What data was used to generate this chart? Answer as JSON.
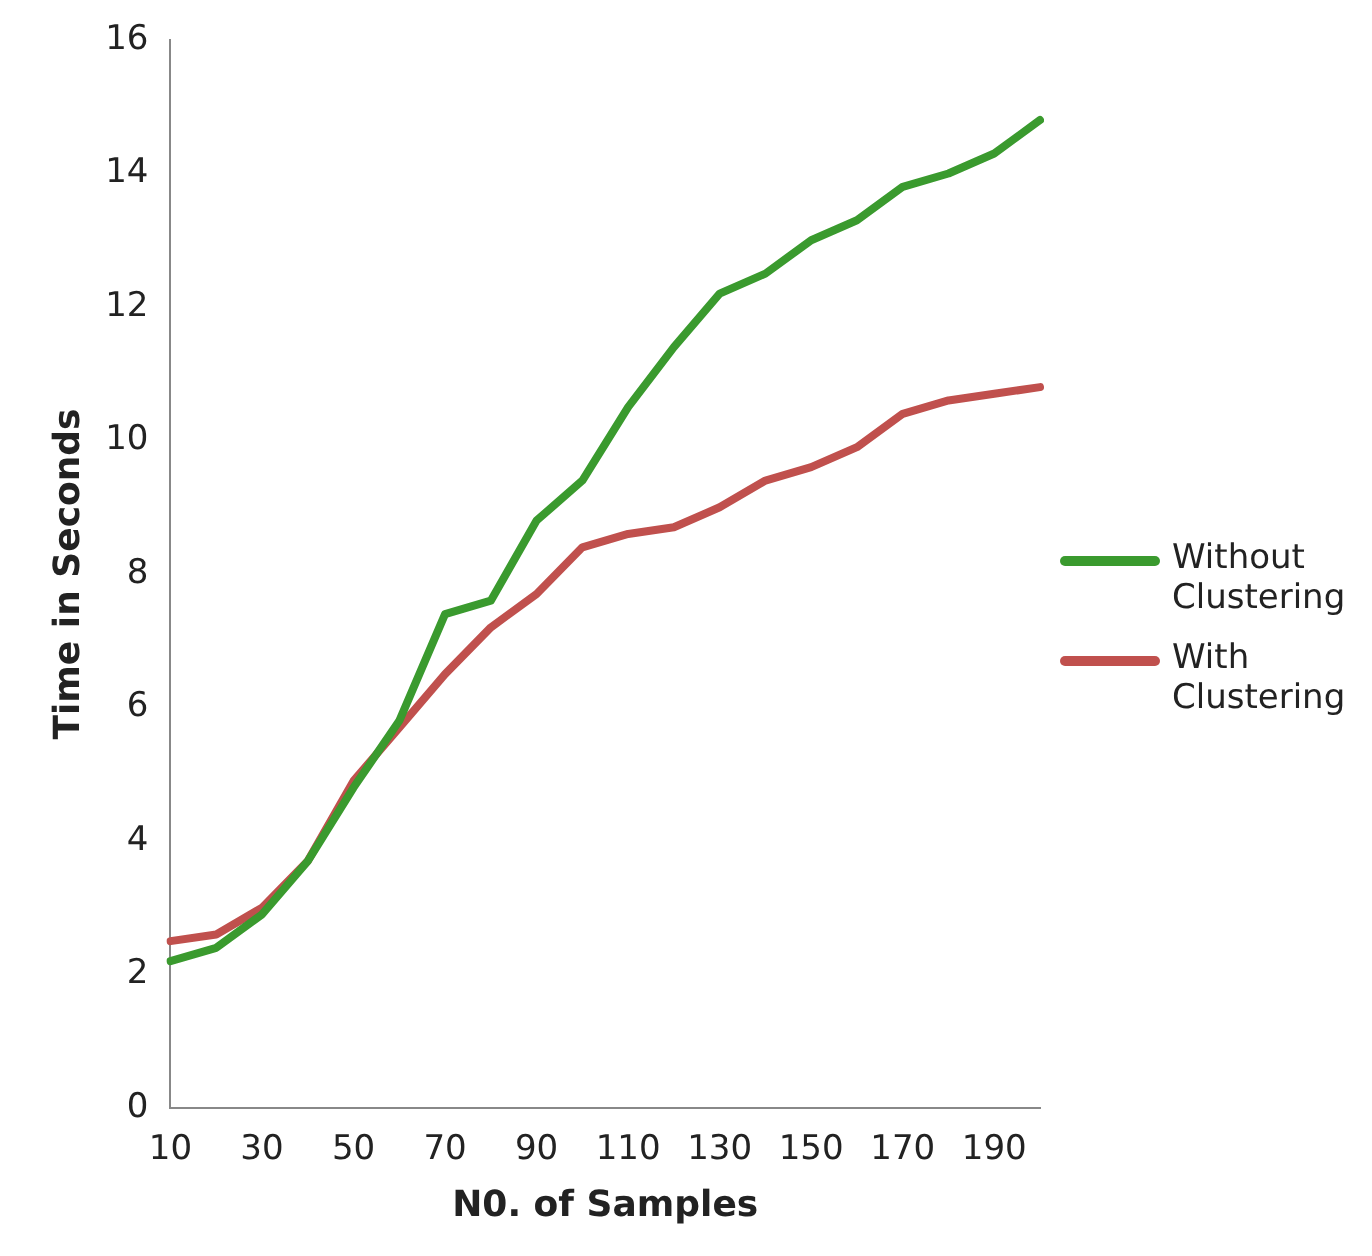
{
  "chart_data": {
    "type": "line",
    "xlabel": "N0. of Samples",
    "ylabel": "Time in Seconds",
    "categories": [
      "10",
      null,
      "30",
      null,
      "50",
      null,
      "70",
      null,
      "90",
      null,
      "110",
      null,
      "130",
      null,
      "150",
      null,
      "170",
      null,
      "190",
      null
    ],
    "series": [
      {
        "name": "Without Clustering",
        "color": "#3a9a2e",
        "values": [
          2.2,
          2.4,
          2.9,
          3.7,
          4.8,
          5.8,
          7.4,
          7.6,
          8.8,
          9.4,
          10.5,
          11.4,
          12.2,
          12.5,
          13.0,
          13.3,
          13.8,
          14.0,
          14.3,
          14.8
        ]
      },
      {
        "name": "With Clustering",
        "color": "#c0504d",
        "values": [
          2.5,
          2.6,
          3.0,
          3.7,
          4.9,
          5.7,
          6.5,
          7.2,
          7.7,
          8.4,
          8.6,
          8.7,
          9.0,
          9.4,
          9.6,
          9.9,
          10.4,
          10.6,
          10.7,
          10.8
        ]
      }
    ],
    "ylim": [
      0,
      16
    ],
    "yticks": [
      0,
      2,
      4,
      6,
      8,
      10,
      12,
      14,
      16
    ],
    "grid": false,
    "legend": "right",
    "marker": "none",
    "line_style": "solid"
  }
}
